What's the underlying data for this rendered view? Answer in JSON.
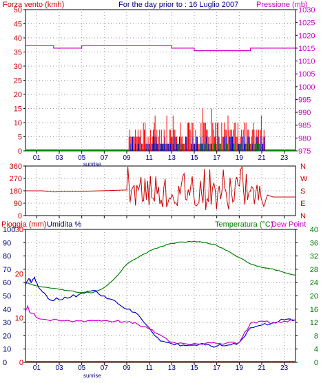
{
  "chart_data": [
    {
      "type": "bar",
      "title": "For the day prior to : 16 Luglio 2007",
      "left_axis_label": "Forza vento (kmh)",
      "right_axis_label": "Pressione (mb)",
      "left_ylim": [
        0,
        50
      ],
      "left_yticks": [
        "0",
        "5",
        "10",
        "15",
        "20",
        "25",
        "30",
        "35",
        "40",
        "45",
        "50"
      ],
      "right_ylim": [
        975,
        1030
      ],
      "right_yticks": [
        "975",
        "980",
        "985",
        "990",
        "995",
        "1000",
        "1005",
        "1010",
        "1015",
        "1020",
        "1025",
        "1030"
      ],
      "xlim": [
        0,
        24
      ],
      "xticks": [
        "01",
        "03",
        "05",
        "07",
        "09",
        "11",
        "13",
        "15",
        "17",
        "19",
        "21",
        "23"
      ],
      "sunrise_label": "sunrise",
      "grid": true,
      "colors": {
        "wind_speed": "#ff0000",
        "wind_gust": "#0000cc",
        "wind_avg": "#008000",
        "pressure": "#cc00cc",
        "left_axis": "#cc0000",
        "right_axis": "#cc00cc",
        "title": "#000080"
      },
      "series": [
        {
          "name": "Pressione (mb)",
          "kind": "step",
          "x": [
            0,
            2.5,
            5,
            10,
            13,
            15,
            17,
            20,
            24
          ],
          "y": [
            1016,
            1015,
            1016,
            1016,
            1015,
            1014,
            1014,
            1015,
            1015
          ]
        },
        {
          "name": "wind_green",
          "kind": "hline",
          "x": [
            0,
            24
          ],
          "y": [
            0,
            0
          ]
        }
      ]
    },
    {
      "type": "line",
      "title": "",
      "left_yticks": [
        "0",
        "90",
        "180",
        "270",
        "360"
      ],
      "left_ylim": [
        0,
        360
      ],
      "right_labels": [
        "N",
        "W",
        "S",
        "E",
        "N"
      ],
      "xlim": [
        0,
        24
      ],
      "xticks": [],
      "grid": true,
      "colors": {
        "direction": "#cc0000"
      }
    },
    {
      "type": "line",
      "left_axis_label_1": "Pioggia (mm)",
      "left_axis_label_2": "Umidita %",
      "right_axis_label_1": "Temperatura (°C)",
      "right_axis_label_2": "Dew Point",
      "left_ylim": [
        0,
        100
      ],
      "left_yticks_red": [
        "0",
        "10",
        "20",
        "30"
      ],
      "left_yticks_blue": [
        "0",
        "10",
        "20",
        "30",
        "40",
        "50",
        "60",
        "70",
        "80",
        "90",
        "100"
      ],
      "right_ylim": [
        0,
        40
      ],
      "right_yticks": [
        "0",
        "4",
        "8",
        "12",
        "16",
        "20",
        "24",
        "28",
        "32",
        "36",
        "40"
      ],
      "xlim": [
        0,
        24
      ],
      "xticks": [
        "01",
        "03",
        "05",
        "07",
        "09",
        "11",
        "13",
        "15",
        "17",
        "19",
        "21",
        "23"
      ],
      "sunrise_label": "sunrise",
      "grid": true,
      "colors": {
        "rain": "#cc0000",
        "humidity": "#0000cc",
        "temperature": "#008000",
        "dewpoint": "#cc00cc",
        "left_axis": "#cc0000",
        "humidity_label": "#000080",
        "right_axis": "#008000"
      },
      "series": [
        {
          "name": "Umidita %",
          "axis": "left",
          "x": [
            0,
            0.3,
            0.5,
            0.8,
            1,
            1.5,
            2,
            3,
            4,
            5,
            6,
            7,
            8,
            9,
            10,
            11,
            12,
            13,
            14,
            15,
            16,
            17,
            18,
            19,
            20,
            21,
            22,
            23,
            24
          ],
          "y": [
            58,
            63,
            60,
            64,
            60,
            53,
            48,
            47,
            49,
            52,
            54,
            50,
            46,
            40,
            36,
            26,
            16,
            14,
            13,
            13,
            13,
            12,
            13,
            15,
            26,
            28,
            30,
            32,
            32
          ]
        },
        {
          "name": "Temperatura (°C)",
          "axis": "right",
          "x": [
            0,
            1,
            2,
            3,
            4,
            5,
            6,
            7,
            8,
            9,
            10,
            11,
            12,
            13,
            14,
            15,
            16,
            17,
            18,
            19,
            20,
            21,
            22,
            23,
            24
          ],
          "y": [
            23.9,
            23,
            22.5,
            22,
            21.5,
            21,
            21,
            22.5,
            25.5,
            29.5,
            31.5,
            33.5,
            34.8,
            35.8,
            36.2,
            36.4,
            36.1,
            35.2,
            33.5,
            31.5,
            29.6,
            28.6,
            28.1,
            27,
            26.3
          ]
        },
        {
          "name": "Dew Point",
          "axis": "right",
          "x": [
            0,
            0.2,
            0.4,
            0.8,
            1,
            2,
            3,
            4,
            5,
            6,
            7,
            8,
            9,
            10,
            11,
            12,
            13,
            14,
            15,
            16,
            17,
            18,
            19,
            20,
            21,
            22,
            23,
            24
          ],
          "y": [
            15,
            17,
            15,
            14.6,
            13.4,
            12.7,
            12.5,
            12.4,
            12.5,
            12.6,
            12.6,
            12.4,
            12.1,
            11.4,
            10,
            8.2,
            6,
            5.7,
            5.7,
            5.7,
            5.6,
            6,
            6,
            11.8,
            12.4,
            11.8,
            12.4,
            12.6
          ]
        },
        {
          "name": "Pioggia (mm)",
          "axis": "left",
          "x": [
            0,
            24
          ],
          "y": [
            0,
            0
          ]
        }
      ]
    }
  ]
}
